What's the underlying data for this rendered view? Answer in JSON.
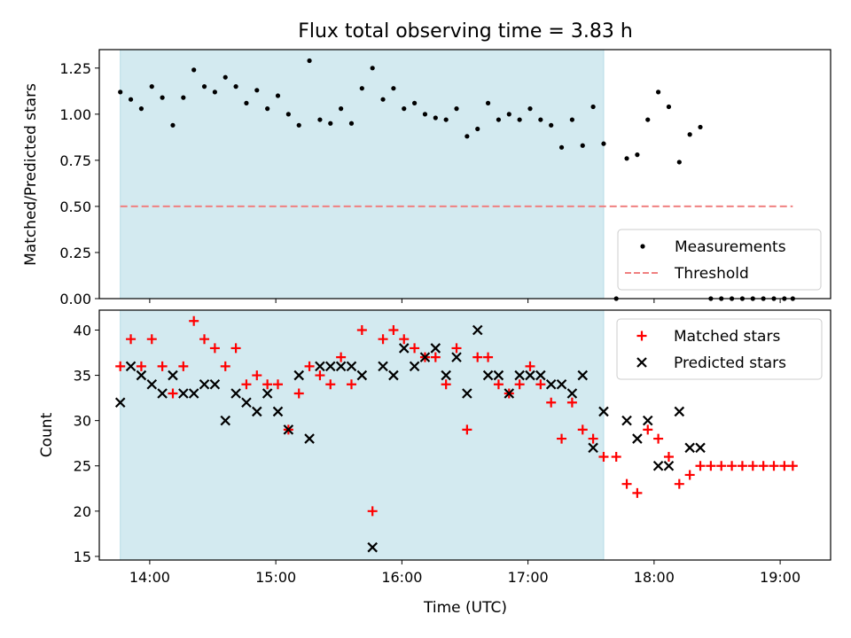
{
  "chart_data": [
    {
      "type": "scatter",
      "title": "Flux total observing time = 3.83 h",
      "ylabel": "Matched/Predicted stars",
      "xlabel": "",
      "xlim": [
        "13:36",
        "19:24"
      ],
      "ylim": [
        0,
        1.35
      ],
      "grid": false,
      "legend_position": "lower right",
      "yticks": [
        0.0,
        0.25,
        0.5,
        0.75,
        1.0,
        1.25
      ],
      "ytick_labels": [
        "0.00",
        "0.25",
        "0.50",
        "0.75",
        "1.00",
        "1.25"
      ],
      "shaded_span": {
        "start": "13:46",
        "end": "17:36",
        "color": "#d3eaf0"
      },
      "threshold": {
        "value": 0.5,
        "from": "13:46",
        "to": "19:06",
        "color": "#f08080",
        "style": "dashed",
        "label": "Threshold"
      },
      "series": [
        {
          "name": "Measurements",
          "marker": "dot",
          "color": "#000000",
          "points": [
            {
              "x": "13:46",
              "y": 1.12
            },
            {
              "x": "13:51",
              "y": 1.08
            },
            {
              "x": "13:56",
              "y": 1.03
            },
            {
              "x": "14:01",
              "y": 1.15
            },
            {
              "x": "14:06",
              "y": 1.09
            },
            {
              "x": "14:11",
              "y": 0.94
            },
            {
              "x": "14:16",
              "y": 1.09
            },
            {
              "x": "14:21",
              "y": 1.24
            },
            {
              "x": "14:26",
              "y": 1.15
            },
            {
              "x": "14:31",
              "y": 1.12
            },
            {
              "x": "14:36",
              "y": 1.2
            },
            {
              "x": "14:41",
              "y": 1.15
            },
            {
              "x": "14:46",
              "y": 1.06
            },
            {
              "x": "14:51",
              "y": 1.13
            },
            {
              "x": "14:56",
              "y": 1.03
            },
            {
              "x": "15:01",
              "y": 1.1
            },
            {
              "x": "15:06",
              "y": 1.0
            },
            {
              "x": "15:11",
              "y": 0.94
            },
            {
              "x": "15:16",
              "y": 1.29
            },
            {
              "x": "15:21",
              "y": 0.97
            },
            {
              "x": "15:26",
              "y": 0.95
            },
            {
              "x": "15:31",
              "y": 1.03
            },
            {
              "x": "15:36",
              "y": 0.95
            },
            {
              "x": "15:41",
              "y": 1.14
            },
            {
              "x": "15:46",
              "y": 1.25
            },
            {
              "x": "15:51",
              "y": 1.08
            },
            {
              "x": "15:56",
              "y": 1.14
            },
            {
              "x": "16:01",
              "y": 1.03
            },
            {
              "x": "16:06",
              "y": 1.06
            },
            {
              "x": "16:11",
              "y": 1.0
            },
            {
              "x": "16:16",
              "y": 0.98
            },
            {
              "x": "16:21",
              "y": 0.97
            },
            {
              "x": "16:26",
              "y": 1.03
            },
            {
              "x": "16:31",
              "y": 0.88
            },
            {
              "x": "16:36",
              "y": 0.92
            },
            {
              "x": "16:41",
              "y": 1.06
            },
            {
              "x": "16:46",
              "y": 0.97
            },
            {
              "x": "16:51",
              "y": 1.0
            },
            {
              "x": "16:56",
              "y": 0.97
            },
            {
              "x": "17:01",
              "y": 1.03
            },
            {
              "x": "17:06",
              "y": 0.97
            },
            {
              "x": "17:11",
              "y": 0.94
            },
            {
              "x": "17:16",
              "y": 0.82
            },
            {
              "x": "17:21",
              "y": 0.97
            },
            {
              "x": "17:26",
              "y": 0.83
            },
            {
              "x": "17:31",
              "y": 1.04
            },
            {
              "x": "17:36",
              "y": 0.84
            },
            {
              "x": "17:42",
              "y": 0.0
            },
            {
              "x": "17:47",
              "y": 0.76
            },
            {
              "x": "17:52",
              "y": 0.78
            },
            {
              "x": "17:57",
              "y": 0.97
            },
            {
              "x": "18:02",
              "y": 1.12
            },
            {
              "x": "18:07",
              "y": 1.04
            },
            {
              "x": "18:12",
              "y": 0.74
            },
            {
              "x": "18:17",
              "y": 0.89
            },
            {
              "x": "18:22",
              "y": 0.93
            },
            {
              "x": "18:27",
              "y": 0.0
            },
            {
              "x": "18:32",
              "y": 0.0
            },
            {
              "x": "18:37",
              "y": 0.0
            },
            {
              "x": "18:42",
              "y": 0.0
            },
            {
              "x": "18:47",
              "y": 0.0
            },
            {
              "x": "18:52",
              "y": 0.0
            },
            {
              "x": "18:57",
              "y": 0.0
            },
            {
              "x": "19:02",
              "y": 0.0
            },
            {
              "x": "19:06",
              "y": 0.0
            }
          ]
        }
      ]
    },
    {
      "type": "scatter",
      "title": "",
      "xlabel": "Time (UTC)",
      "ylabel": "Count",
      "xlim": [
        "13:36",
        "19:24"
      ],
      "ylim": [
        14.6,
        42.2
      ],
      "grid": false,
      "legend_position": "upper right",
      "xticks": [
        "14:00",
        "15:00",
        "16:00",
        "17:00",
        "18:00",
        "19:00"
      ],
      "xtick_labels": [
        "14:00",
        "15:00",
        "16:00",
        "17:00",
        "18:00",
        "19:00"
      ],
      "yticks": [
        15,
        20,
        25,
        30,
        35,
        40
      ],
      "ytick_labels": [
        "15",
        "20",
        "25",
        "30",
        "35",
        "40"
      ],
      "shaded_span": {
        "start": "13:46",
        "end": "17:36",
        "color": "#d3eaf0"
      },
      "series": [
        {
          "name": "Matched stars",
          "marker": "plus",
          "color": "#ff0000",
          "points": [
            {
              "x": "13:46",
              "y": 36
            },
            {
              "x": "13:51",
              "y": 39
            },
            {
              "x": "13:56",
              "y": 36
            },
            {
              "x": "14:01",
              "y": 39
            },
            {
              "x": "14:06",
              "y": 36
            },
            {
              "x": "14:11",
              "y": 33
            },
            {
              "x": "14:16",
              "y": 36
            },
            {
              "x": "14:21",
              "y": 41
            },
            {
              "x": "14:26",
              "y": 39
            },
            {
              "x": "14:31",
              "y": 38
            },
            {
              "x": "14:36",
              "y": 36
            },
            {
              "x": "14:41",
              "y": 38
            },
            {
              "x": "14:46",
              "y": 34
            },
            {
              "x": "14:51",
              "y": 35
            },
            {
              "x": "14:56",
              "y": 34
            },
            {
              "x": "15:01",
              "y": 34
            },
            {
              "x": "15:06",
              "y": 29
            },
            {
              "x": "15:11",
              "y": 33
            },
            {
              "x": "15:16",
              "y": 36
            },
            {
              "x": "15:21",
              "y": 35
            },
            {
              "x": "15:26",
              "y": 34
            },
            {
              "x": "15:31",
              "y": 37
            },
            {
              "x": "15:36",
              "y": 34
            },
            {
              "x": "15:41",
              "y": 40
            },
            {
              "x": "15:46",
              "y": 20
            },
            {
              "x": "15:51",
              "y": 39
            },
            {
              "x": "15:56",
              "y": 40
            },
            {
              "x": "16:01",
              "y": 39
            },
            {
              "x": "16:06",
              "y": 38
            },
            {
              "x": "16:11",
              "y": 37
            },
            {
              "x": "16:16",
              "y": 37
            },
            {
              "x": "16:21",
              "y": 34
            },
            {
              "x": "16:26",
              "y": 38
            },
            {
              "x": "16:31",
              "y": 29
            },
            {
              "x": "16:36",
              "y": 37
            },
            {
              "x": "16:41",
              "y": 37
            },
            {
              "x": "16:46",
              "y": 34
            },
            {
              "x": "16:51",
              "y": 33
            },
            {
              "x": "16:56",
              "y": 34
            },
            {
              "x": "17:01",
              "y": 36
            },
            {
              "x": "17:06",
              "y": 34
            },
            {
              "x": "17:11",
              "y": 32
            },
            {
              "x": "17:16",
              "y": 28
            },
            {
              "x": "17:21",
              "y": 32
            },
            {
              "x": "17:26",
              "y": 29
            },
            {
              "x": "17:31",
              "y": 28
            },
            {
              "x": "17:36",
              "y": 26
            },
            {
              "x": "17:42",
              "y": 26
            },
            {
              "x": "17:47",
              "y": 23
            },
            {
              "x": "17:52",
              "y": 22
            },
            {
              "x": "17:57",
              "y": 29
            },
            {
              "x": "18:02",
              "y": 28
            },
            {
              "x": "18:07",
              "y": 26
            },
            {
              "x": "18:12",
              "y": 23
            },
            {
              "x": "18:17",
              "y": 24
            },
            {
              "x": "18:22",
              "y": 25
            },
            {
              "x": "18:27",
              "y": 25
            },
            {
              "x": "18:32",
              "y": 25
            },
            {
              "x": "18:37",
              "y": 25
            },
            {
              "x": "18:42",
              "y": 25
            },
            {
              "x": "18:47",
              "y": 25
            },
            {
              "x": "18:52",
              "y": 25
            },
            {
              "x": "18:57",
              "y": 25
            },
            {
              "x": "19:02",
              "y": 25
            },
            {
              "x": "19:06",
              "y": 25
            }
          ]
        },
        {
          "name": "Predicted stars",
          "marker": "x",
          "color": "#000000",
          "points": [
            {
              "x": "13:46",
              "y": 32
            },
            {
              "x": "13:51",
              "y": 36
            },
            {
              "x": "13:56",
              "y": 35
            },
            {
              "x": "14:01",
              "y": 34
            },
            {
              "x": "14:06",
              "y": 33
            },
            {
              "x": "14:11",
              "y": 35
            },
            {
              "x": "14:16",
              "y": 33
            },
            {
              "x": "14:21",
              "y": 33
            },
            {
              "x": "14:26",
              "y": 34
            },
            {
              "x": "14:31",
              "y": 34
            },
            {
              "x": "14:36",
              "y": 30
            },
            {
              "x": "14:41",
              "y": 33
            },
            {
              "x": "14:46",
              "y": 32
            },
            {
              "x": "14:51",
              "y": 31
            },
            {
              "x": "14:56",
              "y": 33
            },
            {
              "x": "15:01",
              "y": 31
            },
            {
              "x": "15:06",
              "y": 29
            },
            {
              "x": "15:11",
              "y": 35
            },
            {
              "x": "15:16",
              "y": 28
            },
            {
              "x": "15:21",
              "y": 36
            },
            {
              "x": "15:26",
              "y": 36
            },
            {
              "x": "15:31",
              "y": 36
            },
            {
              "x": "15:36",
              "y": 36
            },
            {
              "x": "15:41",
              "y": 35
            },
            {
              "x": "15:46",
              "y": 16
            },
            {
              "x": "15:51",
              "y": 36
            },
            {
              "x": "15:56",
              "y": 35
            },
            {
              "x": "16:01",
              "y": 38
            },
            {
              "x": "16:06",
              "y": 36
            },
            {
              "x": "16:11",
              "y": 37
            },
            {
              "x": "16:16",
              "y": 38
            },
            {
              "x": "16:21",
              "y": 35
            },
            {
              "x": "16:26",
              "y": 37
            },
            {
              "x": "16:31",
              "y": 33
            },
            {
              "x": "16:36",
              "y": 40
            },
            {
              "x": "16:41",
              "y": 35
            },
            {
              "x": "16:46",
              "y": 35
            },
            {
              "x": "16:51",
              "y": 33
            },
            {
              "x": "16:56",
              "y": 35
            },
            {
              "x": "17:01",
              "y": 35
            },
            {
              "x": "17:06",
              "y": 35
            },
            {
              "x": "17:11",
              "y": 34
            },
            {
              "x": "17:16",
              "y": 34
            },
            {
              "x": "17:21",
              "y": 33
            },
            {
              "x": "17:26",
              "y": 35
            },
            {
              "x": "17:31",
              "y": 27
            },
            {
              "x": "17:36",
              "y": 31
            },
            {
              "x": "17:47",
              "y": 30
            },
            {
              "x": "17:52",
              "y": 28
            },
            {
              "x": "17:57",
              "y": 30
            },
            {
              "x": "18:02",
              "y": 25
            },
            {
              "x": "18:07",
              "y": 25
            },
            {
              "x": "18:12",
              "y": 31
            },
            {
              "x": "18:17",
              "y": 27
            },
            {
              "x": "18:22",
              "y": 27
            }
          ]
        }
      ]
    }
  ]
}
